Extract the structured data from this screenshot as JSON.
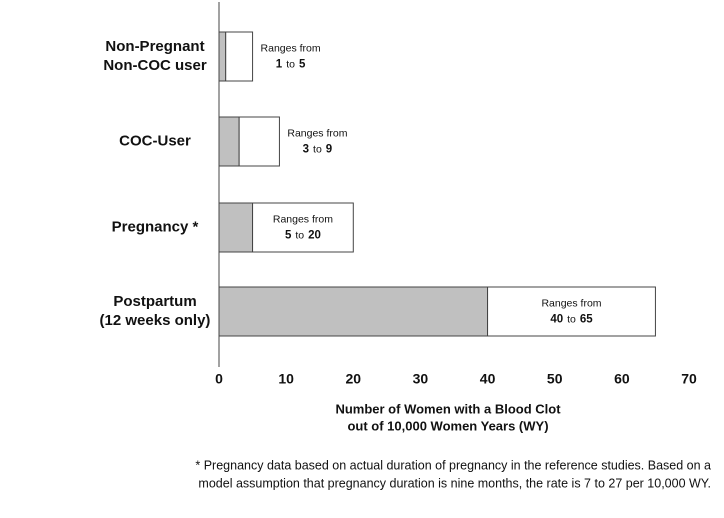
{
  "chart_data": {
    "type": "range_bar",
    "categories": [
      [
        "Non-Pregnant",
        "Non-COC user"
      ],
      [
        "COC-User"
      ],
      [
        "Pregnancy *"
      ],
      [
        "Postpartum",
        "(12 weeks only)"
      ]
    ],
    "low": [
      1,
      3,
      5,
      40
    ],
    "high": [
      5,
      9,
      20,
      65
    ],
    "range_label": "Ranges from",
    "range_sep": "to",
    "low_color": "#c0c0c0",
    "high_color": "#ffffff",
    "xlim": [
      0,
      70
    ],
    "xticks": [
      0,
      10,
      20,
      30,
      40,
      50,
      60,
      70
    ],
    "x_label": [
      "Number of Women with a  Blood Clot",
      "out of  10,000 Women Years (WY)"
    ],
    "footnote": [
      "* Pregnancy data based on actual duration of pregnancy in the reference studies. Based on a",
      "model assumption that pregnancy duration is nine months, the rate is 7 to 27 per 10,000 WY."
    ]
  }
}
